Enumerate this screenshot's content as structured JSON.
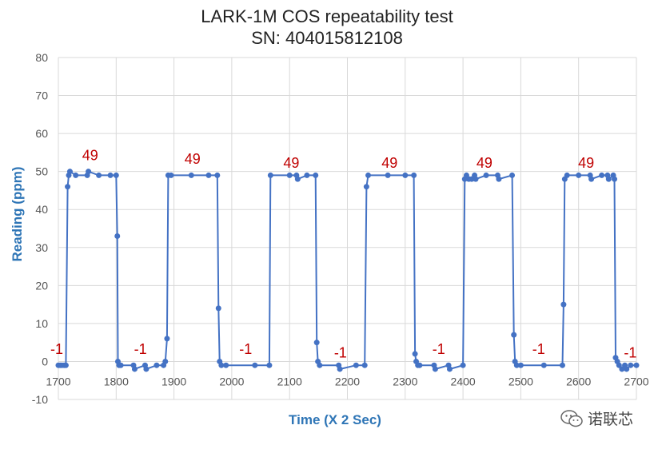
{
  "chart_data": {
    "type": "line",
    "title": "LARK-1M COS repeatability test",
    "subtitle": "SN: 404015812108",
    "xlabel": "Time (X 2 Sec)",
    "ylabel": "Reading (ppm)",
    "xlim": [
      1700,
      2700
    ],
    "ylim": [
      -10,
      80
    ],
    "x_ticks": [
      1700,
      1800,
      1900,
      2000,
      2100,
      2200,
      2300,
      2400,
      2500,
      2600,
      2700
    ],
    "y_ticks": [
      -10,
      0,
      10,
      20,
      30,
      40,
      50,
      60,
      70,
      80
    ],
    "grid": true,
    "legend": "none",
    "series": [
      {
        "color": "#4472c4",
        "x": [
          1700,
          1703,
          1706,
          1710,
          1713,
          1716,
          1718,
          1720,
          1730,
          1750,
          1752,
          1770,
          1790,
          1800,
          1802,
          1803,
          1805,
          1808,
          1830,
          1832,
          1850,
          1852,
          1870,
          1882,
          1885,
          1888,
          1890,
          1895,
          1930,
          1960,
          1975,
          1977,
          1979,
          1982,
          1990,
          2040,
          2065,
          2067,
          2100,
          2112,
          2114,
          2130,
          2145,
          2147,
          2149,
          2152,
          2185,
          2187,
          2215,
          2230,
          2233,
          2236,
          2270,
          2300,
          2315,
          2317,
          2319,
          2322,
          2325,
          2350,
          2352,
          2375,
          2377,
          2400,
          2403,
          2406,
          2410,
          2415,
          2420,
          2422,
          2440,
          2460,
          2462,
          2485,
          2488,
          2490,
          2493,
          2500,
          2540,
          2572,
          2574,
          2576,
          2580,
          2600,
          2620,
          2622,
          2640,
          2650,
          2652,
          2660,
          2662,
          2664,
          2667,
          2670,
          2675,
          2680,
          2683,
          2690,
          2700
        ],
        "y": [
          -1,
          -1,
          -1,
          -1,
          -1,
          46,
          49,
          50,
          49,
          49,
          50,
          49,
          49,
          49,
          33,
          0,
          -1,
          -1,
          -1,
          -2,
          -1,
          -2,
          -1,
          -1,
          0,
          6,
          49,
          49,
          49,
          49,
          49,
          14,
          0,
          -1,
          -1,
          -1,
          -1,
          49,
          49,
          49,
          48,
          49,
          49,
          5,
          0,
          -1,
          -1,
          -2,
          -1,
          -1,
          46,
          49,
          49,
          49,
          49,
          2,
          0,
          -1,
          -1,
          -1,
          -2,
          -1,
          -2,
          -1,
          48,
          49,
          48,
          48,
          49,
          48,
          49,
          49,
          48,
          49,
          7,
          0,
          -1,
          -1,
          -1,
          -1,
          15,
          48,
          49,
          49,
          49,
          48,
          49,
          49,
          48,
          49,
          48,
          1,
          0,
          -1,
          -2,
          -1,
          -2,
          -1,
          -1
        ]
      }
    ],
    "annotations": [
      {
        "text": "-1",
        "x": 1700,
        "y": 2
      },
      {
        "text": "49",
        "x": 1755,
        "y": 53
      },
      {
        "text": "-1",
        "x": 1842,
        "y": 2
      },
      {
        "text": "49",
        "x": 1932,
        "y": 52
      },
      {
        "text": "-1",
        "x": 2024,
        "y": 2
      },
      {
        "text": "49",
        "x": 2103,
        "y": 51
      },
      {
        "text": "-1",
        "x": 2188,
        "y": 1
      },
      {
        "text": "49",
        "x": 2273,
        "y": 51
      },
      {
        "text": "-1",
        "x": 2358,
        "y": 2
      },
      {
        "text": "49",
        "x": 2437,
        "y": 51
      },
      {
        "text": "-1",
        "x": 2531,
        "y": 2
      },
      {
        "text": "49",
        "x": 2613,
        "y": 51
      },
      {
        "text": "-1",
        "x": 2684,
        "y": 1
      }
    ],
    "annotation_color": "#c00000"
  },
  "watermark": {
    "text": "诺联芯",
    "icon": "wechat-icon"
  }
}
